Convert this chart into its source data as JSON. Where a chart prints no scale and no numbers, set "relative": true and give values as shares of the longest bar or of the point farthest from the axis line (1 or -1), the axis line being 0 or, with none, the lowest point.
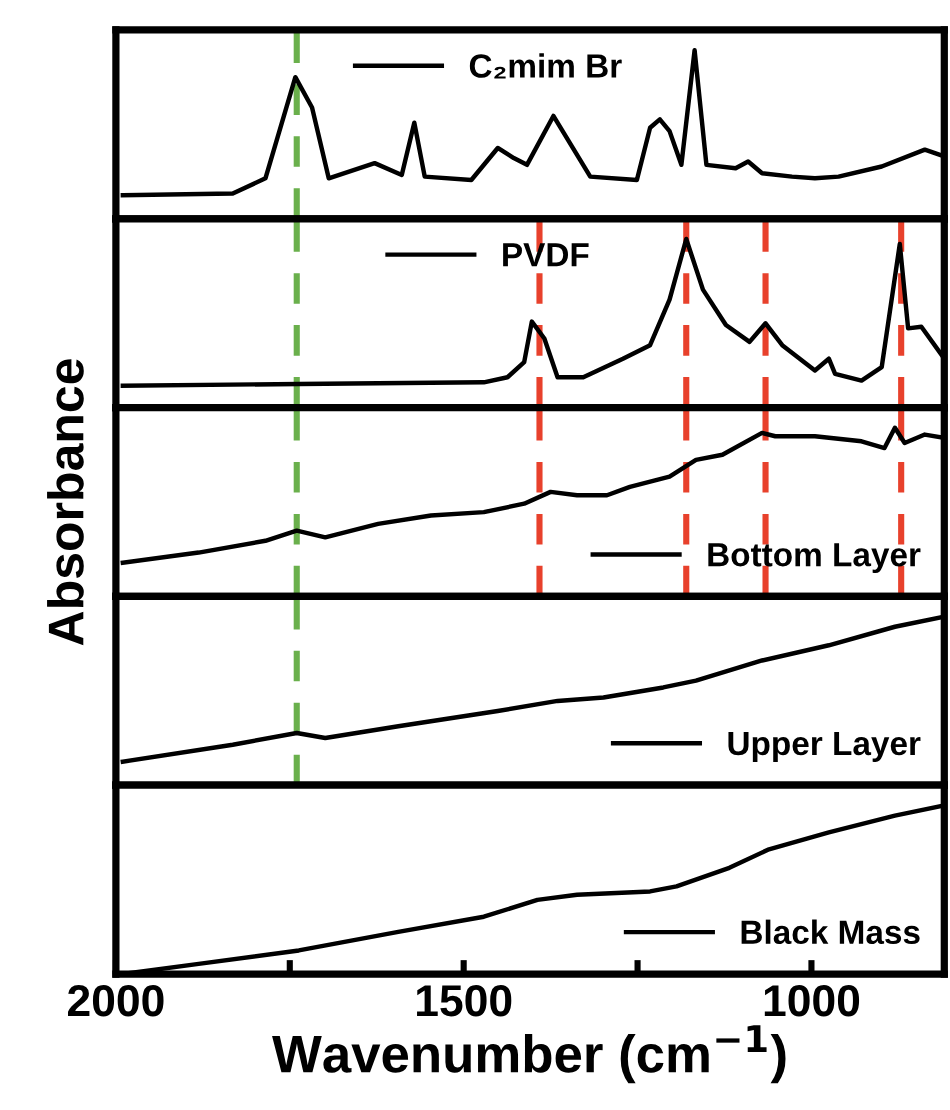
{
  "chart_data": [
    {
      "type": "line",
      "relative": true,
      "xlim": [
        2000,
        809
      ],
      "legend": "top",
      "series": [
        {
          "name": "C₂mim Br",
          "color": "#000000",
          "x": [
            1990,
            1832,
            1785,
            1742,
            1718,
            1694,
            1628,
            1589,
            1571,
            1556,
            1489,
            1451,
            1428,
            1409,
            1371,
            1318,
            1251,
            1232,
            1218,
            1204,
            1187,
            1168,
            1151,
            1109,
            1091,
            1071,
            1028,
            995,
            961,
            899,
            837,
            809
          ],
          "values": [
            0.14,
            0.15,
            0.24,
            0.84,
            0.66,
            0.24,
            0.33,
            0.26,
            0.57,
            0.25,
            0.23,
            0.42,
            0.36,
            0.32,
            0.61,
            0.25,
            0.23,
            0.54,
            0.59,
            0.52,
            0.32,
            1.0,
            0.32,
            0.3,
            0.34,
            0.27,
            0.25,
            0.24,
            0.25,
            0.31,
            0.41,
            0.37
          ]
        }
      ],
      "ref_lines": [
        {
          "axis": "x",
          "value": 1740,
          "color": "#6ab04c",
          "line_style": "dashed"
        }
      ]
    },
    {
      "type": "line",
      "relative": true,
      "xlim": [
        2000,
        809
      ],
      "legend": "top",
      "series": [
        {
          "name": "PVDF",
          "color": "#000000",
          "x": [
            1990,
            1737,
            1471,
            1437,
            1413,
            1402,
            1384,
            1365,
            1328,
            1271,
            1232,
            1204,
            1180,
            1156,
            1123,
            1089,
            1066,
            1042,
            995,
            975,
            966,
            928,
            899,
            873,
            861,
            842,
            809
          ],
          "values": [
            0.13,
            0.14,
            0.15,
            0.18,
            0.27,
            0.51,
            0.41,
            0.18,
            0.18,
            0.29,
            0.37,
            0.64,
            1.0,
            0.7,
            0.49,
            0.39,
            0.5,
            0.37,
            0.22,
            0.29,
            0.2,
            0.16,
            0.24,
            0.97,
            0.47,
            0.48,
            0.29
          ]
        }
      ],
      "ref_lines": [
        {
          "axis": "x",
          "value": 1740,
          "color": "#6ab04c",
          "line_style": "dashed"
        },
        {
          "axis": "x",
          "value": 1391,
          "color": "#e8412c",
          "line_style": "dashed"
        },
        {
          "axis": "x",
          "value": 1180,
          "color": "#e8412c",
          "line_style": "dashed"
        },
        {
          "axis": "x",
          "value": 1066,
          "color": "#e8412c",
          "line_style": "dashed"
        },
        {
          "axis": "x",
          "value": 871,
          "color": "#e8412c",
          "line_style": "dashed"
        }
      ]
    },
    {
      "type": "line",
      "relative": true,
      "xlim": [
        2000,
        809
      ],
      "legend": "bottom right",
      "ylabel": "Absorbance",
      "series": [
        {
          "name": "Bottom Layer",
          "color": "#000000",
          "x": [
            1990,
            1881,
            1785,
            1740,
            1699,
            1623,
            1547,
            1471,
            1413,
            1375,
            1337,
            1294,
            1261,
            1204,
            1166,
            1128,
            1071,
            1052,
            995,
            928,
            895,
            880,
            866,
            837,
            809
          ],
          "values": [
            0.2,
            0.26,
            0.33,
            0.39,
            0.35,
            0.43,
            0.48,
            0.5,
            0.55,
            0.62,
            0.6,
            0.6,
            0.65,
            0.71,
            0.81,
            0.84,
            0.97,
            0.95,
            0.95,
            0.92,
            0.88,
            1.0,
            0.91,
            0.96,
            0.94
          ]
        }
      ],
      "ref_lines": [
        {
          "axis": "x",
          "value": 1740,
          "color": "#6ab04c",
          "line_style": "dashed"
        },
        {
          "axis": "x",
          "value": 1391,
          "color": "#e8412c",
          "line_style": "dashed"
        },
        {
          "axis": "x",
          "value": 1180,
          "color": "#e8412c",
          "line_style": "dashed"
        },
        {
          "axis": "x",
          "value": 1066,
          "color": "#e8412c",
          "line_style": "dashed"
        },
        {
          "axis": "x",
          "value": 871,
          "color": "#e8412c",
          "line_style": "dashed"
        }
      ]
    },
    {
      "type": "line",
      "relative": true,
      "xlim": [
        2000,
        809
      ],
      "legend": "bottom right",
      "series": [
        {
          "name": "Upper Layer",
          "color": "#000000",
          "x": [
            1990,
            1832,
            1740,
            1699,
            1594,
            1451,
            1365,
            1299,
            1213,
            1166,
            1071,
            975,
            880,
            809
          ],
          "values": [
            0.14,
            0.24,
            0.31,
            0.28,
            0.35,
            0.44,
            0.5,
            0.52,
            0.58,
            0.62,
            0.74,
            0.83,
            0.94,
            1.0
          ]
        }
      ],
      "ref_lines": [
        {
          "axis": "x",
          "value": 1740,
          "color": "#6ab04c",
          "line_style": "dashed"
        }
      ]
    },
    {
      "type": "line",
      "relative": true,
      "xlim": [
        2000,
        809
      ],
      "legend": "bottom right",
      "xlabel": "Wavenumber (cm$^{−1}$)",
      "xticks": [
        2000,
        {
          "value": 1750,
          "label": null
        },
        1500,
        {
          "value": 1250,
          "label": null
        },
        1000
      ],
      "series": [
        {
          "name": "Black Mass",
          "color": "#000000",
          "x": [
            1990,
            1881,
            1737,
            1594,
            1471,
            1394,
            1337,
            1232,
            1194,
            1118,
            1061,
            975,
            880,
            809
          ],
          "values": [
            0.0,
            0.06,
            0.14,
            0.25,
            0.34,
            0.44,
            0.47,
            0.49,
            0.52,
            0.63,
            0.74,
            0.84,
            0.94,
            1.0
          ]
        }
      ]
    }
  ]
}
